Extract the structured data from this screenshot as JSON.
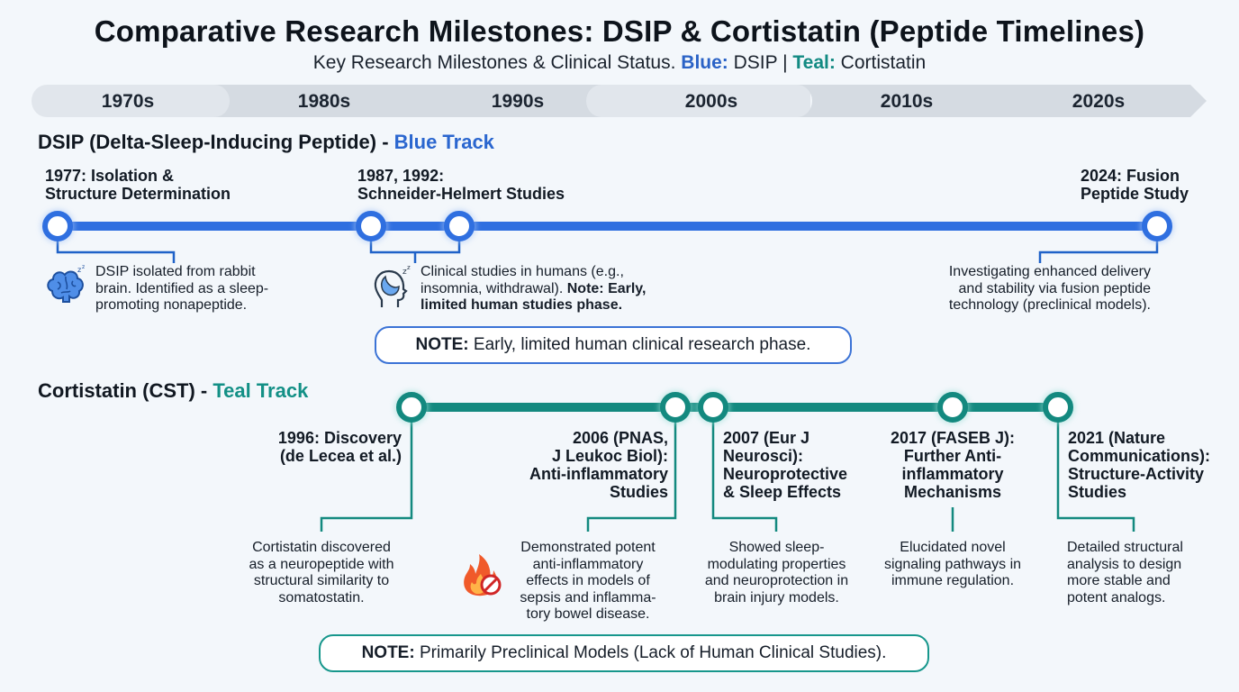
{
  "title": "Comparative Research Milestones: DSIP & Cortistatin (Peptide Timelines)",
  "subtitle": {
    "prefix": "Key Research Milestones & Clinical Status. ",
    "blue_label": "Blue:",
    "blue_value": " DSIP | ",
    "teal_label": "Teal:",
    "teal_value": " Cortistatin"
  },
  "decades": [
    "1970s",
    "1980s",
    "1990s",
    "2000s",
    "2010s",
    "2020s"
  ],
  "colors": {
    "blue": "#2f6fe0",
    "teal": "#13897f",
    "note_blue": "#3b73d6",
    "note_teal": "#17978c"
  },
  "dsip": {
    "track_title": "DSIP (Delta-Sleep-Inducing Peptide) - ",
    "track_label": "Blue Track",
    "milestones": [
      {
        "title_1": "1977: Isolation &",
        "title_2": "Structure Determination",
        "desc_1": "DSIP isolated from rabbit",
        "desc_2": "brain. Identified as a sleep-",
        "desc_3": "promoting nonapeptide.",
        "icon": "brain-icon"
      },
      {
        "title_1": "1987, 1992:",
        "title_2": "Schneider-Helmert Studies",
        "desc_1": "Clinical studies in humans (e.g.,",
        "desc_2": "insomnia, withdrawal). ",
        "desc_2_bold": "Note: Early,",
        "desc_3_bold": "limited human studies phase.",
        "icon": "sleeping-head-icon"
      },
      {
        "title_1": "2024: Fusion",
        "title_2": "Peptide Study",
        "desc_1": "Investigating enhanced delivery",
        "desc_2": "and stability via fusion peptide",
        "desc_3": "technology (preclinical models)."
      }
    ],
    "note_label": "NOTE:",
    "note_text": " Early, limited human clinical research phase."
  },
  "cst": {
    "track_title": "Cortistatin (CST) - ",
    "track_label": "Teal Track",
    "milestones": [
      {
        "title_1": "1996: Discovery",
        "title_2": "(de Lecea et al.)",
        "desc_1": "Cortistatin discovered",
        "desc_2": "as a neuropeptide with",
        "desc_3": "structural similarity to",
        "desc_4": "somatostatin."
      },
      {
        "title_1": "2006 (PNAS,",
        "title_2": "J Leukoc Biol):",
        "title_3": "Anti-inflammatory",
        "title_4": "Studies",
        "desc_1": "Demonstrated potent",
        "desc_2": "anti-inflammatory",
        "desc_3": "effects in models of",
        "desc_4": "sepsis and inflamma-",
        "desc_5": "tory bowel disease.",
        "icon": "no-inflammation-fire-icon"
      },
      {
        "title_1": "2007 (Eur J",
        "title_2": "Neurosci):",
        "title_3": "Neuroprotective",
        "title_4": "& Sleep Effects",
        "desc_1": "Showed sleep-",
        "desc_2": "modulating properties",
        "desc_3": "and neuroprotection in",
        "desc_4": "brain injury models."
      },
      {
        "title_1": "2017 (FASEB J):",
        "title_2": "Further Anti-",
        "title_3": "inflammatory",
        "title_4": "Mechanisms",
        "desc_1": "Elucidated novel",
        "desc_2": "signaling pathways in",
        "desc_3": "immune regulation."
      },
      {
        "title_1": "2021 (Nature",
        "title_2": "Communications):",
        "title_3": "Structure-Activity",
        "title_4": "Studies",
        "desc_1": "Detailed structural",
        "desc_2": "analysis to design",
        "desc_3": "more stable and",
        "desc_4": "potent analogs."
      }
    ],
    "note_label": "NOTE:",
    "note_text": " Primarily Preclinical Models (Lack of Human Clinical Studies)."
  }
}
